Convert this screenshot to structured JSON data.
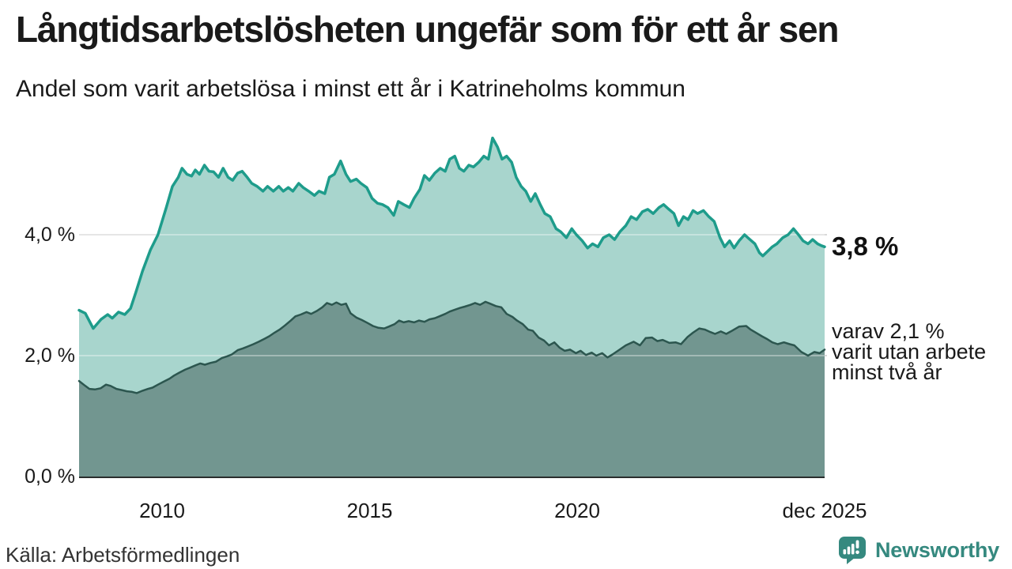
{
  "header": {
    "title": "Långtidsarbetslösheten ungefär som för ett år sen",
    "subtitle": "Andel som varit arbetslösa i minst ett år i Katrineholms kommun"
  },
  "chart_data": {
    "type": "area",
    "title": "Långtidsarbetslösheten ungefär som för ett år sen",
    "subtitle": "Andel som varit arbetslösa i minst ett år i Katrineholms kommun",
    "x_unit": "decimal_year",
    "y_unit": "percent",
    "xlim": [
      2008.0,
      2025.96
    ],
    "ylim": [
      0,
      5.8
    ],
    "grid": "horizontal",
    "legend_position": "none",
    "colors": {
      "line_one_year": "#1e9c8b",
      "fill_one_year": "#a8d5cd",
      "line_two_years": "#2c564f",
      "fill_two_years": "#729690",
      "grid": "#d9d9d9",
      "axis": "#2a2e2d",
      "brand": "#35897f"
    },
    "yticks": [
      {
        "value": 0,
        "label": "0,0 %"
      },
      {
        "value": 2,
        "label": "2,0 %"
      },
      {
        "value": 4,
        "label": "4,0 %"
      }
    ],
    "xticks": [
      {
        "value": 2010,
        "label": "2010"
      },
      {
        "value": 2015,
        "label": "2015"
      },
      {
        "value": 2020,
        "label": "2020"
      },
      {
        "value": 2025.96,
        "label": "dec 2025"
      }
    ],
    "end_value": {
      "value": 3.8,
      "label": "3,8 %"
    },
    "annotation": {
      "anchor_value": 2.1,
      "lines": [
        "varav 2,1 %",
        "varit utan arbete",
        "minst två år"
      ]
    },
    "series": [
      {
        "name": "Arbetslösa minst ett år",
        "line_color": "#1e9c8b",
        "fill_color": "#a8d5cd",
        "line_width": 3.5,
        "points": [
          [
            2008.0,
            2.75
          ],
          [
            2008.15,
            2.7
          ],
          [
            2008.34,
            2.45
          ],
          [
            2008.53,
            2.6
          ],
          [
            2008.69,
            2.68
          ],
          [
            2008.8,
            2.62
          ],
          [
            2008.95,
            2.72
          ],
          [
            2009.1,
            2.68
          ],
          [
            2009.24,
            2.78
          ],
          [
            2009.37,
            3.05
          ],
          [
            2009.53,
            3.4
          ],
          [
            2009.72,
            3.75
          ],
          [
            2009.9,
            4.0
          ],
          [
            2010.1,
            4.45
          ],
          [
            2010.25,
            4.8
          ],
          [
            2010.39,
            4.95
          ],
          [
            2010.48,
            5.1
          ],
          [
            2010.6,
            5.0
          ],
          [
            2010.71,
            4.97
          ],
          [
            2010.8,
            5.07
          ],
          [
            2010.9,
            5.0
          ],
          [
            2011.02,
            5.15
          ],
          [
            2011.13,
            5.05
          ],
          [
            2011.24,
            5.04
          ],
          [
            2011.36,
            4.95
          ],
          [
            2011.47,
            5.1
          ],
          [
            2011.59,
            4.95
          ],
          [
            2011.7,
            4.9
          ],
          [
            2011.82,
            5.02
          ],
          [
            2011.93,
            5.05
          ],
          [
            2012.05,
            4.95
          ],
          [
            2012.16,
            4.85
          ],
          [
            2012.29,
            4.8
          ],
          [
            2012.43,
            4.72
          ],
          [
            2012.54,
            4.8
          ],
          [
            2012.68,
            4.72
          ],
          [
            2012.81,
            4.8
          ],
          [
            2012.92,
            4.72
          ],
          [
            2013.04,
            4.78
          ],
          [
            2013.15,
            4.72
          ],
          [
            2013.29,
            4.85
          ],
          [
            2013.4,
            4.78
          ],
          [
            2013.53,
            4.72
          ],
          [
            2013.67,
            4.65
          ],
          [
            2013.78,
            4.72
          ],
          [
            2013.92,
            4.68
          ],
          [
            2014.03,
            4.95
          ],
          [
            2014.15,
            5.0
          ],
          [
            2014.3,
            5.22
          ],
          [
            2014.43,
            5.0
          ],
          [
            2014.54,
            4.88
          ],
          [
            2014.68,
            4.92
          ],
          [
            2014.79,
            4.85
          ],
          [
            2014.93,
            4.78
          ],
          [
            2015.06,
            4.6
          ],
          [
            2015.19,
            4.52
          ],
          [
            2015.31,
            4.5
          ],
          [
            2015.44,
            4.45
          ],
          [
            2015.58,
            4.32
          ],
          [
            2015.69,
            4.55
          ],
          [
            2015.82,
            4.5
          ],
          [
            2015.96,
            4.45
          ],
          [
            2016.07,
            4.6
          ],
          [
            2016.21,
            4.75
          ],
          [
            2016.32,
            4.98
          ],
          [
            2016.44,
            4.9
          ],
          [
            2016.57,
            5.02
          ],
          [
            2016.7,
            5.1
          ],
          [
            2016.82,
            5.05
          ],
          [
            2016.93,
            5.25
          ],
          [
            2017.05,
            5.3
          ],
          [
            2017.16,
            5.1
          ],
          [
            2017.27,
            5.05
          ],
          [
            2017.39,
            5.15
          ],
          [
            2017.5,
            5.12
          ],
          [
            2017.63,
            5.2
          ],
          [
            2017.75,
            5.3
          ],
          [
            2017.86,
            5.25
          ],
          [
            2017.96,
            5.6
          ],
          [
            2018.08,
            5.45
          ],
          [
            2018.19,
            5.25
          ],
          [
            2018.3,
            5.3
          ],
          [
            2018.42,
            5.2
          ],
          [
            2018.53,
            4.95
          ],
          [
            2018.65,
            4.8
          ],
          [
            2018.76,
            4.72
          ],
          [
            2018.88,
            4.55
          ],
          [
            2018.99,
            4.68
          ],
          [
            2019.11,
            4.5
          ],
          [
            2019.22,
            4.35
          ],
          [
            2019.35,
            4.3
          ],
          [
            2019.49,
            4.1
          ],
          [
            2019.6,
            4.05
          ],
          [
            2019.74,
            3.95
          ],
          [
            2019.87,
            4.1
          ],
          [
            2019.98,
            4.0
          ],
          [
            2020.12,
            3.9
          ],
          [
            2020.25,
            3.78
          ],
          [
            2020.37,
            3.85
          ],
          [
            2020.5,
            3.8
          ],
          [
            2020.63,
            3.95
          ],
          [
            2020.77,
            4.0
          ],
          [
            2020.9,
            3.92
          ],
          [
            2021.03,
            4.05
          ],
          [
            2021.17,
            4.15
          ],
          [
            2021.3,
            4.3
          ],
          [
            2021.43,
            4.25
          ],
          [
            2021.57,
            4.38
          ],
          [
            2021.7,
            4.42
          ],
          [
            2021.83,
            4.35
          ],
          [
            2021.97,
            4.45
          ],
          [
            2022.08,
            4.5
          ],
          [
            2022.21,
            4.42
          ],
          [
            2022.33,
            4.35
          ],
          [
            2022.44,
            4.15
          ],
          [
            2022.56,
            4.3
          ],
          [
            2022.67,
            4.25
          ],
          [
            2022.79,
            4.4
          ],
          [
            2022.9,
            4.35
          ],
          [
            2023.04,
            4.4
          ],
          [
            2023.17,
            4.3
          ],
          [
            2023.3,
            4.22
          ],
          [
            2023.44,
            3.95
          ],
          [
            2023.55,
            3.8
          ],
          [
            2023.67,
            3.9
          ],
          [
            2023.78,
            3.78
          ],
          [
            2023.9,
            3.9
          ],
          [
            2024.03,
            4.0
          ],
          [
            2024.16,
            3.92
          ],
          [
            2024.28,
            3.85
          ],
          [
            2024.39,
            3.7
          ],
          [
            2024.47,
            3.65
          ],
          [
            2024.58,
            3.72
          ],
          [
            2024.7,
            3.8
          ],
          [
            2024.81,
            3.85
          ],
          [
            2024.95,
            3.95
          ],
          [
            2025.08,
            4.0
          ],
          [
            2025.21,
            4.1
          ],
          [
            2025.33,
            4.0
          ],
          [
            2025.44,
            3.9
          ],
          [
            2025.56,
            3.85
          ],
          [
            2025.67,
            3.92
          ],
          [
            2025.79,
            3.85
          ],
          [
            2025.88,
            3.82
          ],
          [
            2025.96,
            3.8
          ]
        ]
      },
      {
        "name": "varav arbetslösa minst två år",
        "line_color": "#2c564f",
        "fill_color": "#729690",
        "line_width": 2.5,
        "points": [
          [
            2008.0,
            1.58
          ],
          [
            2008.15,
            1.5
          ],
          [
            2008.25,
            1.45
          ],
          [
            2008.38,
            1.44
          ],
          [
            2008.52,
            1.46
          ],
          [
            2008.65,
            1.52
          ],
          [
            2008.76,
            1.5
          ],
          [
            2008.9,
            1.45
          ],
          [
            2009.03,
            1.43
          ],
          [
            2009.15,
            1.41
          ],
          [
            2009.28,
            1.4
          ],
          [
            2009.39,
            1.38
          ],
          [
            2009.53,
            1.42
          ],
          [
            2009.66,
            1.45
          ],
          [
            2009.77,
            1.47
          ],
          [
            2009.9,
            1.52
          ],
          [
            2010.04,
            1.57
          ],
          [
            2010.18,
            1.62
          ],
          [
            2010.29,
            1.67
          ],
          [
            2010.42,
            1.72
          ],
          [
            2010.56,
            1.77
          ],
          [
            2010.67,
            1.8
          ],
          [
            2010.81,
            1.84
          ],
          [
            2010.92,
            1.87
          ],
          [
            2011.03,
            1.85
          ],
          [
            2011.17,
            1.88
          ],
          [
            2011.3,
            1.9
          ],
          [
            2011.44,
            1.96
          ],
          [
            2011.57,
            1.99
          ],
          [
            2011.68,
            2.02
          ],
          [
            2011.82,
            2.09
          ],
          [
            2011.95,
            2.12
          ],
          [
            2012.06,
            2.15
          ],
          [
            2012.2,
            2.19
          ],
          [
            2012.33,
            2.23
          ],
          [
            2012.47,
            2.28
          ],
          [
            2012.58,
            2.32
          ],
          [
            2012.71,
            2.38
          ],
          [
            2012.83,
            2.43
          ],
          [
            2012.96,
            2.5
          ],
          [
            2013.1,
            2.58
          ],
          [
            2013.21,
            2.65
          ],
          [
            2013.34,
            2.68
          ],
          [
            2013.48,
            2.72
          ],
          [
            2013.59,
            2.69
          ],
          [
            2013.73,
            2.74
          ],
          [
            2013.86,
            2.8
          ],
          [
            2013.97,
            2.87
          ],
          [
            2014.09,
            2.84
          ],
          [
            2014.2,
            2.88
          ],
          [
            2014.32,
            2.84
          ],
          [
            2014.43,
            2.86
          ],
          [
            2014.54,
            2.7
          ],
          [
            2014.68,
            2.63
          ],
          [
            2014.81,
            2.59
          ],
          [
            2014.95,
            2.54
          ],
          [
            2015.08,
            2.49
          ],
          [
            2015.21,
            2.46
          ],
          [
            2015.35,
            2.45
          ],
          [
            2015.46,
            2.48
          ],
          [
            2015.6,
            2.52
          ],
          [
            2015.71,
            2.58
          ],
          [
            2015.82,
            2.55
          ],
          [
            2015.94,
            2.57
          ],
          [
            2016.07,
            2.55
          ],
          [
            2016.19,
            2.58
          ],
          [
            2016.32,
            2.56
          ],
          [
            2016.44,
            2.6
          ],
          [
            2016.57,
            2.62
          ],
          [
            2016.68,
            2.65
          ],
          [
            2016.82,
            2.69
          ],
          [
            2016.93,
            2.73
          ],
          [
            2017.05,
            2.76
          ],
          [
            2017.18,
            2.79
          ],
          [
            2017.29,
            2.81
          ],
          [
            2017.43,
            2.84
          ],
          [
            2017.54,
            2.87
          ],
          [
            2017.66,
            2.84
          ],
          [
            2017.79,
            2.89
          ],
          [
            2017.9,
            2.86
          ],
          [
            2018.04,
            2.82
          ],
          [
            2018.17,
            2.8
          ],
          [
            2018.3,
            2.69
          ],
          [
            2018.44,
            2.64
          ],
          [
            2018.55,
            2.58
          ],
          [
            2018.69,
            2.52
          ],
          [
            2018.82,
            2.43
          ],
          [
            2018.93,
            2.41
          ],
          [
            2019.07,
            2.3
          ],
          [
            2019.2,
            2.25
          ],
          [
            2019.32,
            2.17
          ],
          [
            2019.45,
            2.22
          ],
          [
            2019.58,
            2.13
          ],
          [
            2019.7,
            2.08
          ],
          [
            2019.83,
            2.1
          ],
          [
            2019.97,
            2.04
          ],
          [
            2020.08,
            2.08
          ],
          [
            2020.21,
            2.01
          ],
          [
            2020.35,
            2.05
          ],
          [
            2020.46,
            2.0
          ],
          [
            2020.6,
            2.04
          ],
          [
            2020.73,
            1.97
          ],
          [
            2020.85,
            2.02
          ],
          [
            2020.98,
            2.08
          ],
          [
            2021.17,
            2.17
          ],
          [
            2021.36,
            2.23
          ],
          [
            2021.51,
            2.17
          ],
          [
            2021.65,
            2.29
          ],
          [
            2021.8,
            2.3
          ],
          [
            2021.93,
            2.24
          ],
          [
            2022.06,
            2.26
          ],
          [
            2022.22,
            2.21
          ],
          [
            2022.37,
            2.22
          ],
          [
            2022.5,
            2.19
          ],
          [
            2022.66,
            2.31
          ],
          [
            2022.79,
            2.38
          ],
          [
            2022.94,
            2.45
          ],
          [
            2023.08,
            2.43
          ],
          [
            2023.21,
            2.39
          ],
          [
            2023.32,
            2.36
          ],
          [
            2023.46,
            2.4
          ],
          [
            2023.59,
            2.36
          ],
          [
            2023.7,
            2.4
          ],
          [
            2023.9,
            2.48
          ],
          [
            2024.07,
            2.49
          ],
          [
            2024.18,
            2.43
          ],
          [
            2024.28,
            2.39
          ],
          [
            2024.45,
            2.32
          ],
          [
            2024.56,
            2.28
          ],
          [
            2024.7,
            2.22
          ],
          [
            2024.83,
            2.19
          ],
          [
            2024.98,
            2.22
          ],
          [
            2025.12,
            2.19
          ],
          [
            2025.23,
            2.17
          ],
          [
            2025.4,
            2.06
          ],
          [
            2025.56,
            2.0
          ],
          [
            2025.71,
            2.06
          ],
          [
            2025.84,
            2.04
          ],
          [
            2025.96,
            2.1
          ]
        ]
      }
    ]
  },
  "footer": {
    "source": "Källa: Arbetsförmedlingen",
    "brand": "Newsworthy"
  }
}
